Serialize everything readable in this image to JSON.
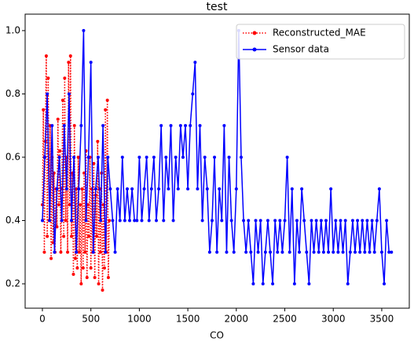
{
  "chart_data": {
    "type": "line",
    "title": "test",
    "x_label": "CO",
    "xlim": [
      -178,
      3784
    ],
    "ylim": [
      0.123,
      1.052
    ],
    "xticks": [
      0,
      500,
      1000,
      1500,
      2000,
      2500,
      3000,
      3500
    ],
    "yticks": [
      0.2,
      0.4,
      0.6,
      0.8,
      {
        "value": 1,
        "label": "1.0"
      }
    ],
    "legend": "upper right",
    "series": [
      {
        "name": "Reconstructed_MAE",
        "color": "#ff0000",
        "style": "dotted",
        "x": [
          0,
          10,
          20,
          30,
          40,
          50,
          60,
          70,
          80,
          90,
          100,
          110,
          120,
          130,
          140,
          150,
          160,
          170,
          180,
          190,
          200,
          210,
          220,
          230,
          240,
          250,
          260,
          270,
          280,
          290,
          300,
          310,
          320,
          330,
          340,
          350,
          360,
          370,
          380,
          390,
          400,
          410,
          420,
          430,
          440,
          450,
          460,
          470,
          480,
          490,
          500,
          510,
          520,
          530,
          540,
          550,
          560,
          570,
          580,
          590,
          600,
          610,
          620,
          630,
          640,
          650,
          660,
          670,
          680,
          690
        ],
        "values": [
          0.45,
          0.75,
          0.3,
          0.65,
          0.92,
          0.35,
          0.85,
          0.4,
          0.7,
          0.28,
          0.6,
          0.33,
          0.55,
          0.3,
          0.5,
          0.38,
          0.72,
          0.45,
          0.62,
          0.3,
          0.5,
          0.78,
          0.35,
          0.85,
          0.4,
          0.6,
          0.3,
          0.9,
          0.45,
          0.92,
          0.35,
          0.55,
          0.23,
          0.7,
          0.28,
          0.5,
          0.25,
          0.6,
          0.3,
          0.45,
          0.2,
          0.5,
          0.25,
          0.55,
          0.3,
          0.62,
          0.22,
          0.45,
          0.35,
          0.6,
          0.25,
          0.5,
          0.3,
          0.58,
          0.22,
          0.48,
          0.35,
          0.65,
          0.2,
          0.5,
          0.3,
          0.55,
          0.18,
          0.45,
          0.25,
          0.75,
          0.3,
          0.78,
          0.22,
          0.4
        ]
      },
      {
        "name": "Sensor data",
        "color": "#0000ff",
        "style": "solid",
        "x": [
          0,
          25,
          50,
          75,
          100,
          125,
          150,
          175,
          200,
          225,
          250,
          275,
          300,
          325,
          350,
          375,
          400,
          425,
          450,
          475,
          500,
          525,
          550,
          575,
          600,
          625,
          650,
          675,
          700,
          725,
          750,
          775,
          800,
          825,
          850,
          875,
          900,
          925,
          950,
          975,
          1000,
          1025,
          1050,
          1075,
          1100,
          1125,
          1150,
          1175,
          1200,
          1225,
          1250,
          1275,
          1300,
          1325,
          1350,
          1375,
          1400,
          1425,
          1450,
          1475,
          1500,
          1525,
          1550,
          1575,
          1600,
          1625,
          1650,
          1675,
          1700,
          1725,
          1750,
          1775,
          1800,
          1825,
          1850,
          1875,
          1900,
          1925,
          1950,
          1975,
          2000,
          2025,
          2050,
          2075,
          2100,
          2125,
          2150,
          2175,
          2200,
          2225,
          2250,
          2275,
          2300,
          2325,
          2350,
          2375,
          2400,
          2425,
          2450,
          2475,
          2500,
          2525,
          2550,
          2575,
          2600,
          2625,
          2650,
          2675,
          2700,
          2725,
          2750,
          2775,
          2800,
          2825,
          2850,
          2875,
          2900,
          2925,
          2950,
          2975,
          3000,
          3025,
          3050,
          3075,
          3100,
          3125,
          3150,
          3175,
          3200,
          3225,
          3250,
          3275,
          3300,
          3325,
          3350,
          3375,
          3400,
          3425,
          3450,
          3475,
          3500,
          3525,
          3550,
          3575,
          3600
        ],
        "values": [
          0.4,
          0.6,
          0.8,
          0.4,
          0.7,
          0.3,
          0.5,
          0.6,
          0.4,
          0.7,
          0.5,
          0.8,
          0.4,
          0.6,
          0.3,
          0.5,
          0.7,
          1.0,
          0.4,
          0.6,
          0.9,
          0.3,
          0.5,
          0.6,
          0.4,
          0.7,
          0.3,
          0.6,
          0.5,
          0.4,
          0.3,
          0.5,
          0.4,
          0.6,
          0.4,
          0.5,
          0.4,
          0.5,
          0.4,
          0.4,
          0.6,
          0.4,
          0.5,
          0.6,
          0.4,
          0.5,
          0.6,
          0.4,
          0.5,
          0.7,
          0.4,
          0.6,
          0.5,
          0.7,
          0.4,
          0.6,
          0.5,
          0.7,
          0.6,
          0.7,
          0.5,
          0.7,
          0.8,
          0.9,
          0.5,
          0.7,
          0.4,
          0.6,
          0.5,
          0.3,
          0.4,
          0.6,
          0.3,
          0.5,
          0.4,
          0.7,
          0.3,
          0.6,
          0.4,
          0.3,
          0.5,
          1.0,
          0.6,
          0.4,
          0.3,
          0.4,
          0.3,
          0.2,
          0.4,
          0.3,
          0.4,
          0.2,
          0.3,
          0.4,
          0.3,
          0.2,
          0.4,
          0.3,
          0.4,
          0.3,
          0.4,
          0.6,
          0.3,
          0.5,
          0.2,
          0.4,
          0.3,
          0.5,
          0.4,
          0.3,
          0.2,
          0.4,
          0.3,
          0.4,
          0.3,
          0.4,
          0.3,
          0.4,
          0.3,
          0.5,
          0.3,
          0.4,
          0.3,
          0.4,
          0.3,
          0.4,
          0.2,
          0.3,
          0.4,
          0.3,
          0.4,
          0.3,
          0.4,
          0.3,
          0.4,
          0.3,
          0.4,
          0.3,
          0.4,
          0.5,
          0.3,
          0.2,
          0.4,
          0.3,
          0.3
        ]
      }
    ]
  }
}
